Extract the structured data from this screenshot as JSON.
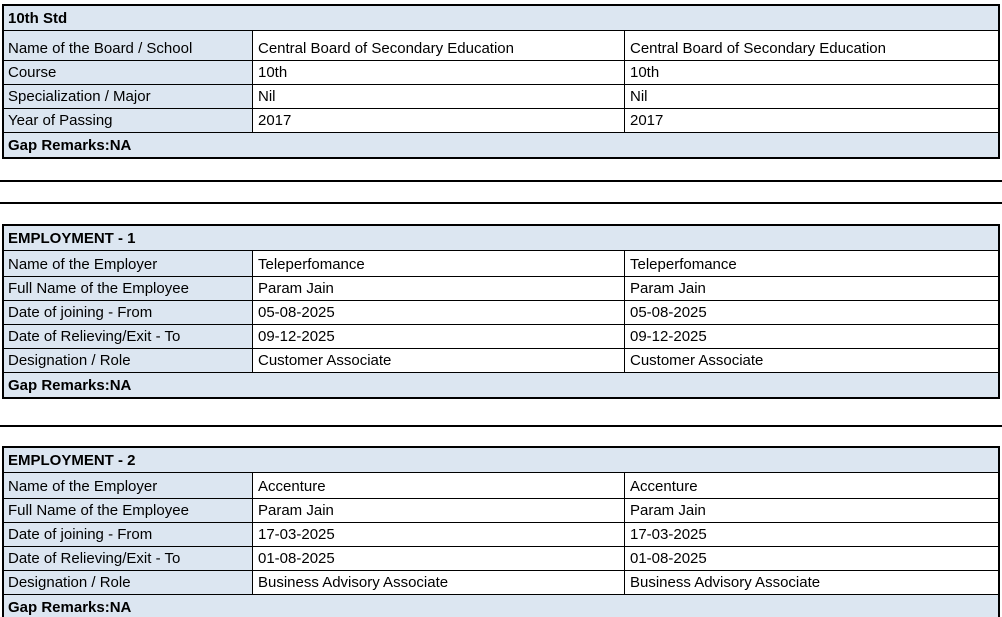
{
  "colors": {
    "section_bg": "#dce6f1",
    "border": "#000000",
    "text": "#000000",
    "page_bg": "#ffffff"
  },
  "sections": [
    {
      "title": "10th Std",
      "rows": [
        {
          "label": "Name of the Board / School",
          "value1": "Central Board of Secondary Education",
          "value2": "Central Board of Secondary Education"
        },
        {
          "label": "Course",
          "value1": "10th",
          "value2": "10th"
        },
        {
          "label": "Specialization / Major",
          "value1": "Nil",
          "value2": "Nil"
        },
        {
          "label": "Year of Passing",
          "value1": "2017",
          "value2": "2017"
        }
      ],
      "footer": "Gap Remarks:NA"
    },
    {
      "title": "EMPLOYMENT - 1",
      "rows": [
        {
          "label": "Name of the Employer",
          "value1": "Teleperfomance",
          "value2": "Teleperfomance"
        },
        {
          "label": "Full Name of the Employee",
          "value1": "Param Jain",
          "value2": "Param Jain"
        },
        {
          "label": "Date of joining - From",
          "value1": "05-08-2025",
          "value2": "05-08-2025"
        },
        {
          "label": "Date of Relieving/Exit - To",
          "value1": "09-12-2025",
          "value2": "09-12-2025"
        },
        {
          "label": "Designation / Role",
          "value1": "Customer Associate",
          "value2": "Customer Associate"
        }
      ],
      "footer": "Gap Remarks:NA"
    },
    {
      "title": "EMPLOYMENT - 2",
      "rows": [
        {
          "label": "Name of the Employer",
          "value1": "Accenture",
          "value2": "Accenture"
        },
        {
          "label": "Full Name of the Employee",
          "value1": "Param Jain",
          "value2": "Param Jain"
        },
        {
          "label": "Date of joining - From",
          "value1": "17-03-2025",
          "value2": "17-03-2025"
        },
        {
          "label": "Date of Relieving/Exit - To",
          "value1": "01-08-2025",
          "value2": "01-08-2025"
        },
        {
          "label": "Designation / Role",
          "value1": "Business Advisory Associate",
          "value2": "Business Advisory Associate"
        }
      ],
      "footer": "Gap Remarks:NA"
    }
  ]
}
